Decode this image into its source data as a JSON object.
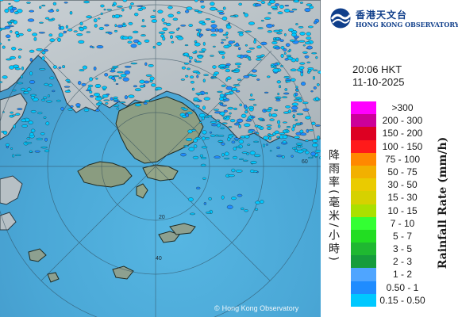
{
  "map": {
    "time": "20:06 HKT",
    "date": "11-10-2025",
    "copyright": "Hong Kong Observatory",
    "copyright_icon": "copyright-icon",
    "range_rings": [
      {
        "label": "60",
        "radius_km": 60
      },
      {
        "label": "40",
        "radius_km": 40
      },
      {
        "label": "20",
        "radius_km": 20
      }
    ]
  },
  "branding": {
    "name_cn": "香港天文台",
    "name_en": "HONG KONG OBSERVATORY",
    "logo_icon": "hko-logo-icon",
    "colors": {
      "brand": "#0f3e8a"
    }
  },
  "legend": {
    "title_cn": "降雨率(毫米/小時)",
    "title_en": "Rainfall Rate (mm/h)",
    "items": [
      {
        "label": ">300",
        "color": "#ff00ff"
      },
      {
        "label": "200 - 300",
        "color": "#cc0099"
      },
      {
        "label": "150 - 200",
        "color": "#dd0022"
      },
      {
        "label": "100 - 150",
        "color": "#ff1a1a"
      },
      {
        "label": "75 - 100",
        "color": "#ff8800"
      },
      {
        "label": "50 - 75",
        "color": "#f2b000"
      },
      {
        "label": "30 - 50",
        "color": "#eacb00"
      },
      {
        "label": "15 - 30",
        "color": "#d6d100"
      },
      {
        "label": "10 - 15",
        "color": "#aae000"
      },
      {
        "label": "7 - 10",
        "color": "#33ff33"
      },
      {
        "label": "5 - 7",
        "color": "#22dd22"
      },
      {
        "label": "3 - 5",
        "color": "#1fb831"
      },
      {
        "label": "2 - 3",
        "color": "#169c3c"
      },
      {
        "label": "1 - 2",
        "color": "#4fa5ff"
      },
      {
        "label": "0.50 - 1",
        "color": "#1f8cff"
      },
      {
        "label": "0.15 - 0.50",
        "color": "#00c8ff"
      }
    ]
  }
}
